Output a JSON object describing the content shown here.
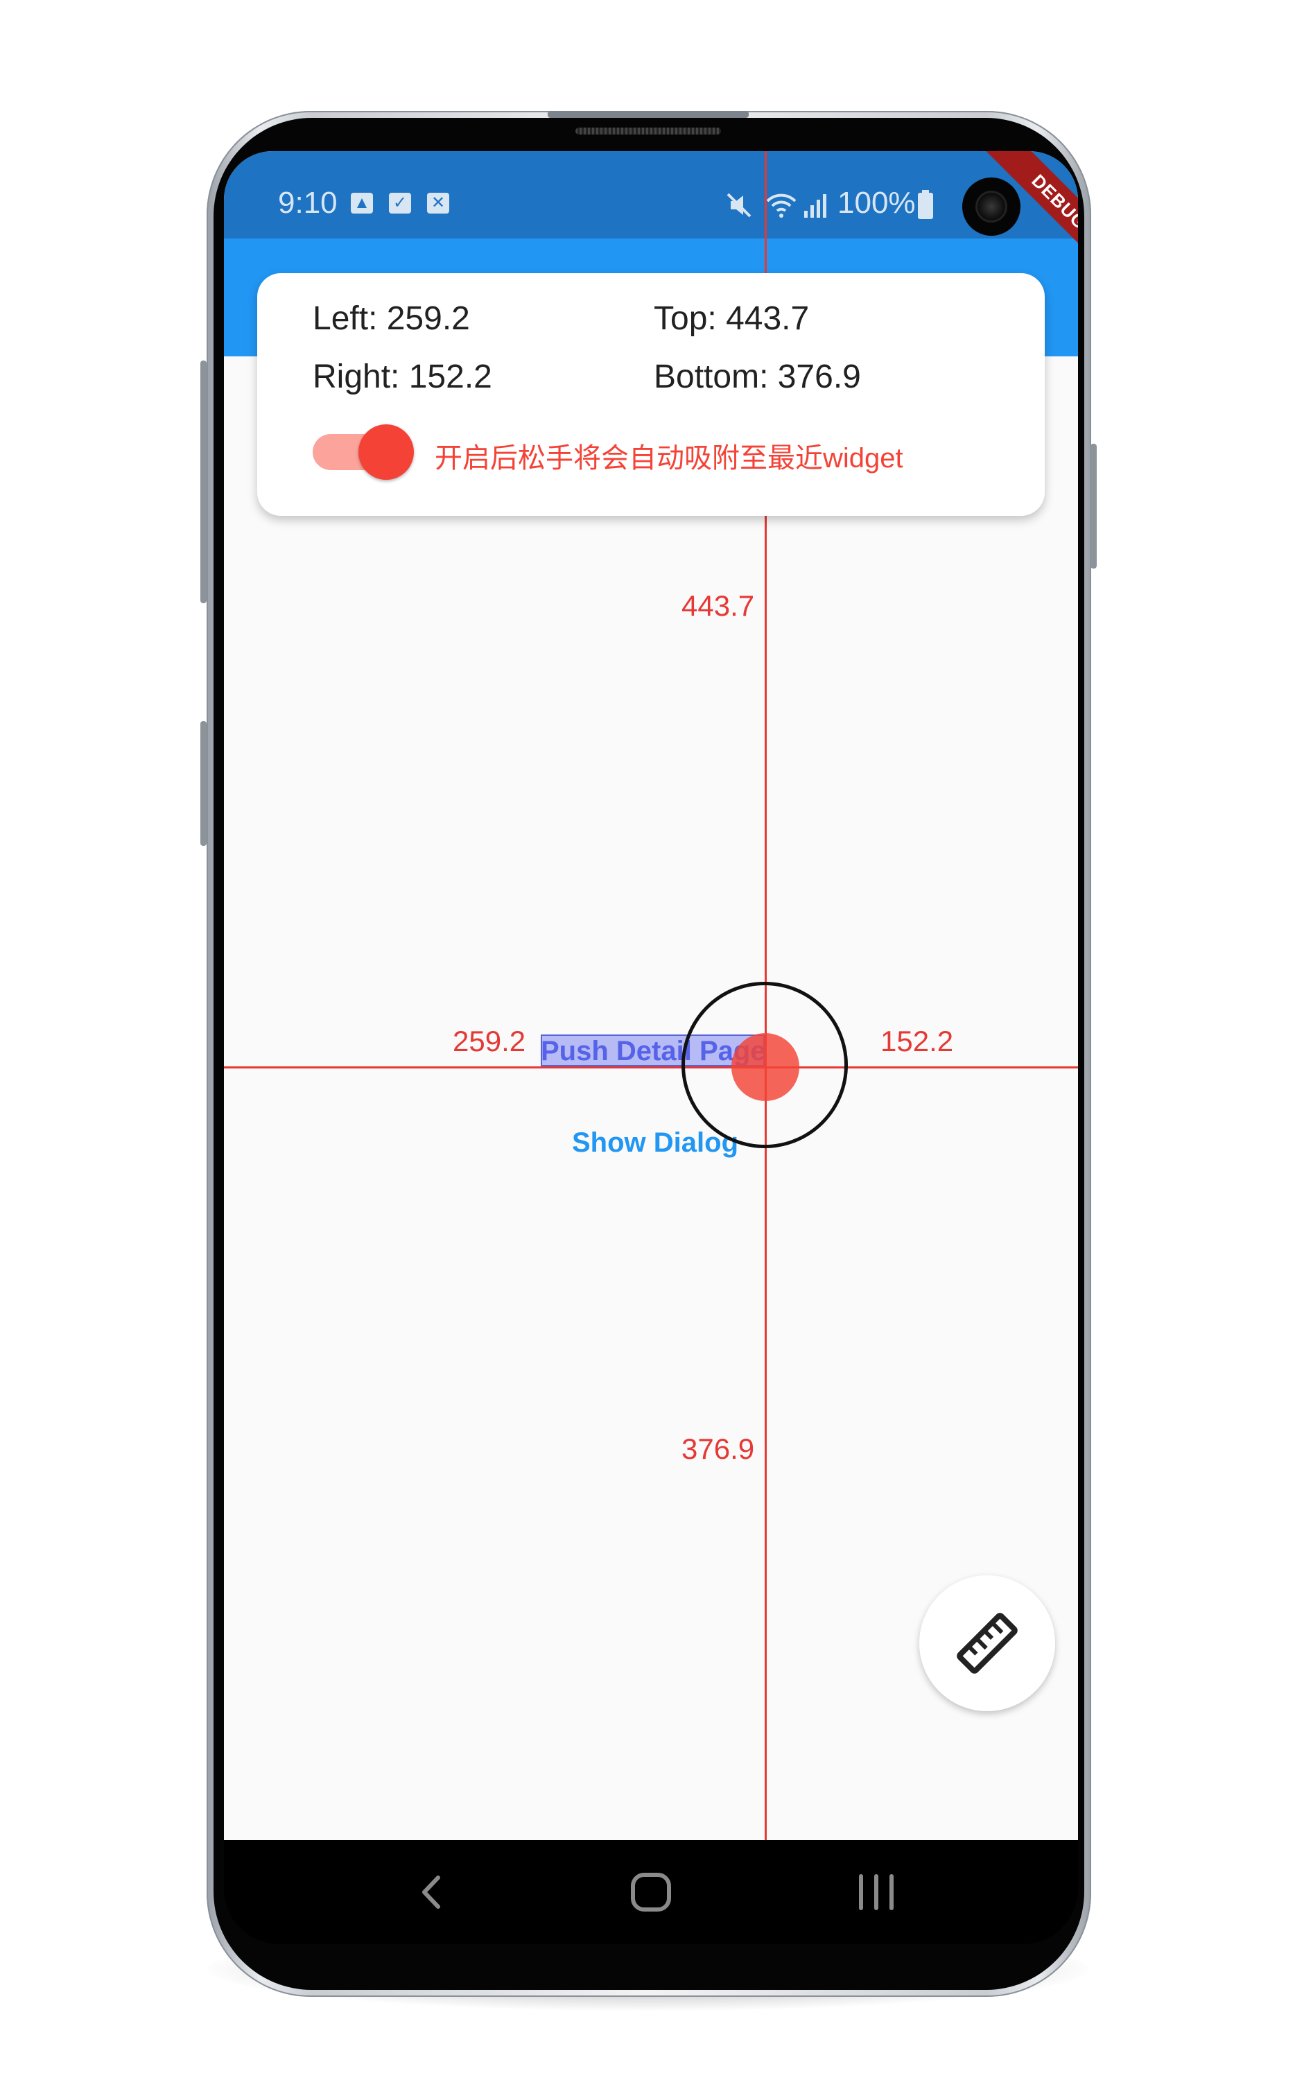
{
  "status_bar": {
    "time": "9:10",
    "battery": "100%",
    "left_icons": [
      "gallery-icon",
      "check-icon",
      "close-box-icon"
    ],
    "right_icons": [
      "mute-icon",
      "wifi-icon",
      "signal-icon",
      "battery-icon"
    ]
  },
  "debug_banner": "DEBUG",
  "measure_panel": {
    "left_label": "Left: 259.2",
    "top_label": "Top: 443.7",
    "right_label": "Right: 152.2",
    "bottom_label": "Bottom: 376.9",
    "snap_switch": {
      "on": true,
      "label": "开启后松手将会自动吸附至最近widget"
    }
  },
  "measure_lines": {
    "left": "259.2",
    "top": "443.7",
    "right": "152.2",
    "bottom": "376.9"
  },
  "buttons": {
    "push_detail": "Push Detail Page",
    "show_dialog": "Show Dialog"
  },
  "fab": {
    "icon": "ruler-icon"
  },
  "nav_bar": {
    "icons": [
      "back-icon",
      "home-icon",
      "recents-icon"
    ]
  },
  "colors": {
    "status_bar": "#1e73c2",
    "app_bar": "#2196f3",
    "accent_red": "#f44336",
    "link_blue": "#2196f3",
    "highlight": "#6370f0"
  }
}
